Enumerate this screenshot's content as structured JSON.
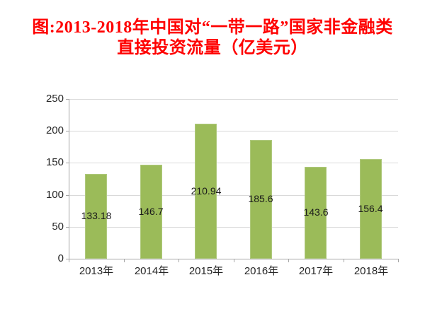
{
  "title": {
    "line1": "图:2013-2018年中国对“一带一路”国家非金融类",
    "line2": "直接投资流量（亿美元）",
    "color": "#FF0000"
  },
  "chart_data": {
    "type": "bar",
    "title": "图:2013-2018年中国对“一带一路”国家非金融类直接投资流量（亿美元）",
    "categories": [
      "2013年",
      "2014年",
      "2015年",
      "2016年",
      "2017年",
      "2018年"
    ],
    "values": [
      133.18,
      146.7,
      210.94,
      185.6,
      143.6,
      156.4
    ],
    "value_labels": [
      "133.18",
      "146.7",
      "210.94",
      "185.6",
      "143.6",
      "156.4"
    ],
    "xlabel": "",
    "ylabel": "",
    "ylim": [
      0,
      250
    ],
    "yticks": [
      0,
      50,
      100,
      150,
      200,
      250
    ],
    "grid": true,
    "legend": false,
    "value_labels_position": "center-of-bar",
    "colors": {
      "bar_fill": "#9BBB59",
      "bar_border": "#AFC97E",
      "gridline": "#D9D9D9",
      "axis": "#A6A6A6",
      "tick_label": "#262626",
      "value_label": "#1A1A1A",
      "background": "#FFFFFF"
    }
  }
}
